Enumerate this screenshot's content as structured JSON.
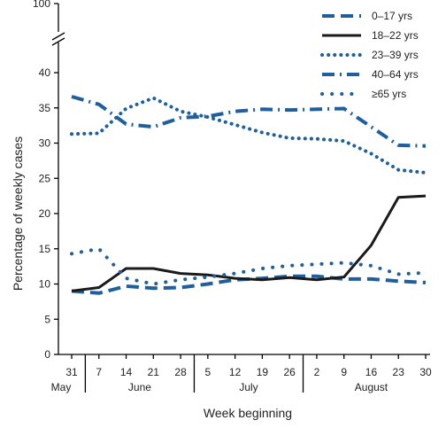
{
  "chart_data": {
    "type": "line",
    "ylabel": "Percentage of weekly cases",
    "xlabel": "Week beginning",
    "ylim": [
      0,
      40
    ],
    "y_break_top": 100,
    "yticks": [
      0,
      5,
      10,
      15,
      20,
      25,
      30,
      35,
      40,
      100
    ],
    "x": [
      "31",
      "7",
      "14",
      "21",
      "28",
      "5",
      "12",
      "19",
      "26",
      "2",
      "9",
      "16",
      "23",
      "30"
    ],
    "months": [
      {
        "label": "May",
        "start": 0,
        "end": 0
      },
      {
        "label": "June",
        "start": 1,
        "end": 4
      },
      {
        "label": "July",
        "start": 5,
        "end": 8
      },
      {
        "label": "August",
        "start": 9,
        "end": 13
      }
    ],
    "legend_position": "top-right",
    "series": [
      {
        "name": "0–17 yrs",
        "style": "dashed",
        "color": "#1f5f9e",
        "values": [
          9.0,
          8.7,
          9.7,
          9.4,
          9.5,
          10.0,
          10.6,
          10.8,
          11.1,
          11.1,
          10.7,
          10.7,
          10.4,
          10.2
        ]
      },
      {
        "name": "18–22 yrs",
        "style": "solid",
        "color": "#1a1a1a",
        "values": [
          9.0,
          9.5,
          12.2,
          12.2,
          11.5,
          11.3,
          10.8,
          10.6,
          10.9,
          10.6,
          11.0,
          15.5,
          22.3,
          22.5
        ]
      },
      {
        "name": "23–39 yrs",
        "style": "dotted",
        "color": "#1f5f9e",
        "values": [
          31.3,
          31.4,
          34.9,
          36.4,
          34.5,
          33.7,
          32.6,
          31.5,
          30.7,
          30.6,
          30.3,
          28.5,
          26.2,
          25.8
        ]
      },
      {
        "name": "40–64 yrs",
        "style": "dash-dot",
        "color": "#1f5f9e",
        "values": [
          36.6,
          35.5,
          32.7,
          32.3,
          33.6,
          33.8,
          34.5,
          34.8,
          34.7,
          34.8,
          34.9,
          32.3,
          29.7,
          29.6
        ]
      },
      {
        "name": "≥65 yrs",
        "style": "sparse-dotted",
        "color": "#1f5f9e",
        "values": [
          14.3,
          15.0,
          10.8,
          10.0,
          10.6,
          11.0,
          11.5,
          12.2,
          12.6,
          12.8,
          13.0,
          12.6,
          11.4,
          11.6
        ]
      }
    ]
  }
}
